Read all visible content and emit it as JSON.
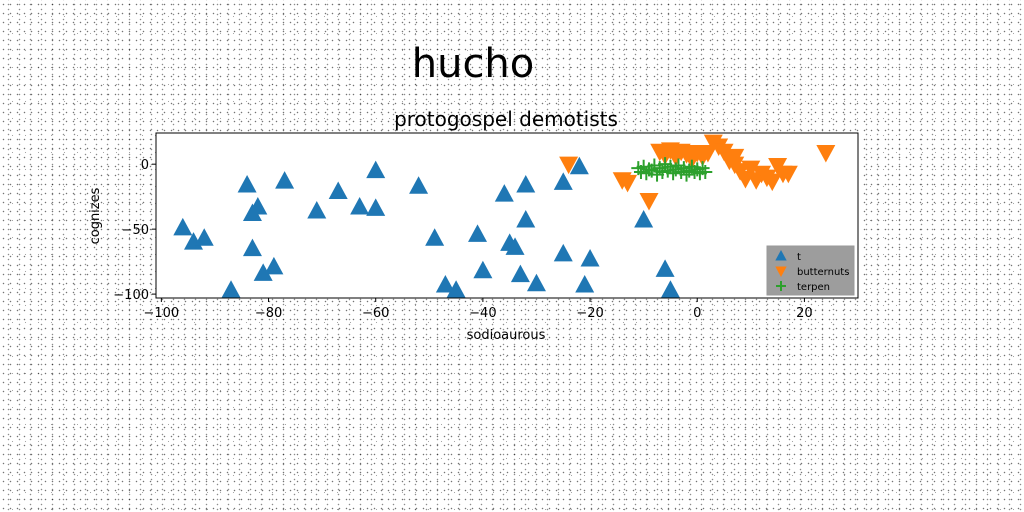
{
  "figure": {
    "suptitle": "hucho"
  },
  "chart_data": {
    "type": "scatter",
    "title": "protogospel demotists",
    "xlabel": "sodioaurous",
    "ylabel": "cognizes",
    "xlim": [
      -101,
      30
    ],
    "ylim": [
      -103,
      24
    ],
    "xticks": [
      -100,
      -80,
      -60,
      -40,
      -20,
      0,
      20
    ],
    "yticks": [
      0,
      -50,
      -100
    ],
    "legend": "lower-right",
    "series": [
      {
        "name": "t",
        "marker": "triangle-up",
        "color": "#1f77b4",
        "x": [
          -96,
          -94,
          -92,
          -87,
          -84,
          -83,
          -83,
          -82,
          -81,
          -79,
          -77,
          -71,
          -67,
          -63,
          -60,
          -60,
          -52,
          -49,
          -47,
          -45,
          -41,
          -40,
          -36,
          -35,
          -34,
          -33,
          -32,
          -32,
          -30,
          -25,
          -25,
          -22,
          -21,
          -20,
          -10,
          -6,
          -5
        ],
        "y": [
          -49,
          -60,
          -57,
          -97,
          -16,
          -38,
          -65,
          -33,
          -84,
          -79,
          -13,
          -36,
          -21,
          -33,
          -5,
          -34,
          -17,
          -57,
          -93,
          -97,
          -54,
          -82,
          -23,
          -61,
          -64,
          -85,
          -16,
          -43,
          -92,
          -14,
          -69,
          -2,
          -93,
          -73,
          -43,
          -81,
          -97
        ]
      },
      {
        "name": "butternuts",
        "marker": "triangle-down",
        "color": "#ff7f0e",
        "x": [
          -24,
          -14,
          -13,
          -9,
          -7,
          -6,
          -5,
          -4,
          -3,
          -2,
          -1,
          0,
          1,
          2,
          3,
          4,
          5,
          6,
          7,
          7,
          8,
          9,
          10,
          11,
          12,
          13,
          14,
          15,
          16,
          17,
          24
        ],
        "y": [
          0,
          -12,
          -14,
          -28,
          10,
          7,
          11,
          6,
          10,
          8,
          4,
          9,
          6,
          9,
          17,
          14,
          10,
          3,
          6,
          0,
          -5,
          -11,
          -3,
          -12,
          -7,
          -10,
          -13,
          -1,
          -7,
          -7,
          9
        ]
      },
      {
        "name": "terpen",
        "marker": "plus",
        "color": "#2ca02c",
        "x": [
          -11,
          -10.5,
          -10,
          -9.5,
          -9,
          -8.5,
          -8,
          -7.5,
          -7,
          -6.5,
          -6,
          -5.5,
          -5,
          -4.5,
          -4,
          -3.5,
          -3,
          -2.5,
          -2,
          -1.5,
          -1,
          -0.5,
          0,
          0.5,
          1,
          1.5
        ],
        "y": [
          -3,
          -6,
          -2,
          -7,
          -4,
          -5,
          -1,
          -8,
          -3,
          -6,
          0,
          -5,
          -2,
          -7,
          -4,
          -1,
          -6,
          -3,
          -8,
          -5,
          -2,
          -6,
          -4,
          -7,
          -3,
          -6
        ]
      }
    ]
  }
}
